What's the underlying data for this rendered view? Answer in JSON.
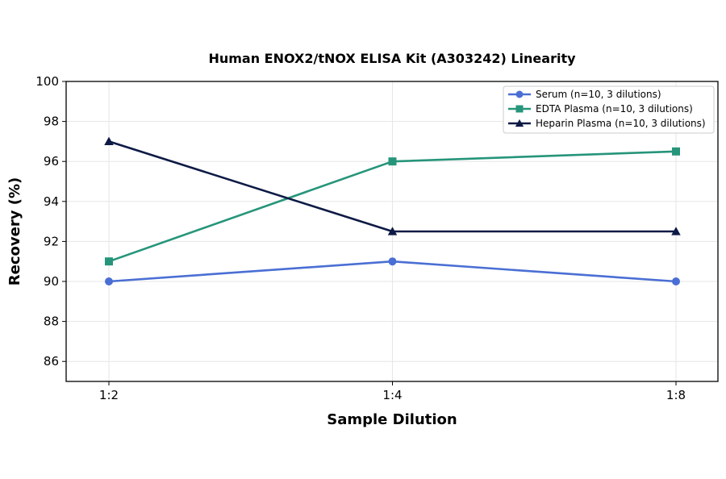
{
  "chart_data": {
    "type": "line",
    "title": "Human ENOX2/tNOX ELISA Kit (A303242) Linearity",
    "xlabel": "Sample Dilution",
    "ylabel": "Recovery (%)",
    "categories": [
      "1:2",
      "1:4",
      "1:8"
    ],
    "ylim": [
      85,
      100
    ],
    "yticks": [
      86,
      88,
      90,
      92,
      94,
      96,
      98,
      100
    ],
    "grid": true,
    "legend_position": "top-right",
    "series": [
      {
        "name": "Serum (n=10, 3 dilutions)",
        "values": [
          90,
          91,
          90
        ],
        "color": "#4a6fd4",
        "marker": "circle"
      },
      {
        "name": "EDTA Plasma (n=10, 3 dilutions)",
        "values": [
          91,
          96,
          96.5
        ],
        "color": "#26957a",
        "marker": "square"
      },
      {
        "name": "Heparin Plasma (n=10, 3 dilutions)",
        "values": [
          97,
          92.5,
          92.5
        ],
        "color": "#0d1a45",
        "marker": "triangle"
      }
    ]
  }
}
